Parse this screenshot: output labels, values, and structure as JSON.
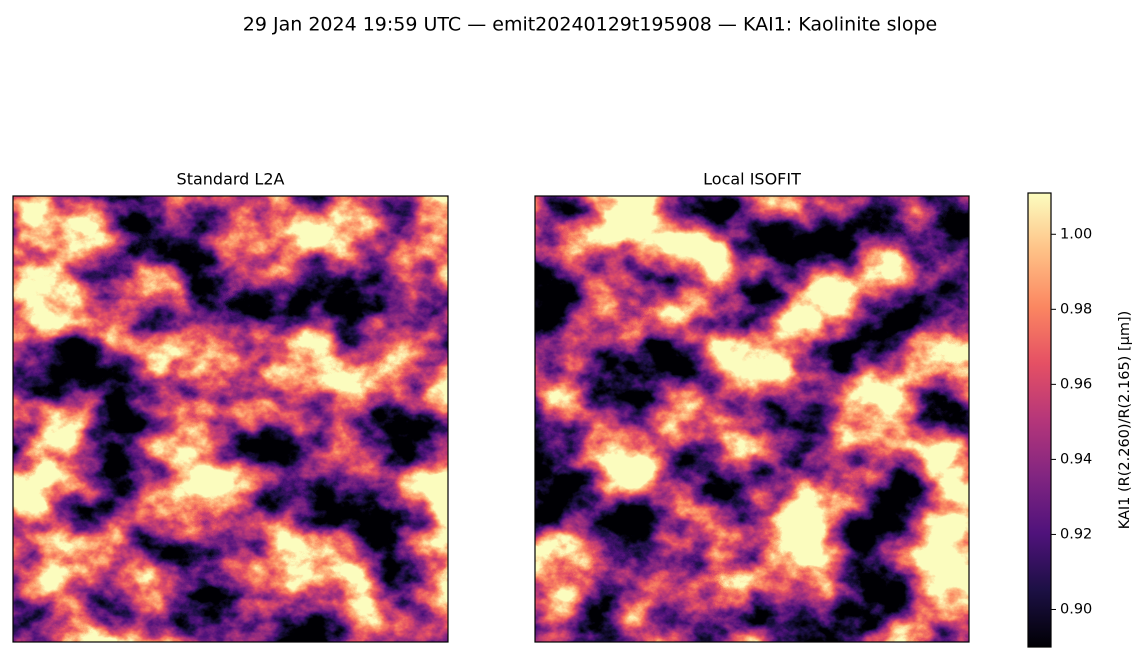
{
  "chart_data": {
    "type": "raster",
    "title": "29 Jan 2024 19:59 UTC — emit20240129t195908 — KAI1: Kaolinite slope",
    "panels": [
      {
        "title": "Standard L2A"
      },
      {
        "title": "Local ISOFIT"
      }
    ],
    "colorbar": {
      "label": "KAI1  (R(2.260)/R(2.165)  [µm])",
      "lim": [
        0.89,
        1.011
      ],
      "ticks": [
        {
          "value": 0.9,
          "label": "0.90"
        },
        0.92,
        0.94,
        0.96,
        0.98,
        {
          "value": 1.0,
          "label": "1.00"
        }
      ],
      "colors": [
        "#000004",
        "#1c1044",
        "#4f127b",
        "#812581",
        "#b5367a",
        "#e55064",
        "#fb8761",
        "#fec287",
        "#fcfdbf"
      ]
    }
  }
}
